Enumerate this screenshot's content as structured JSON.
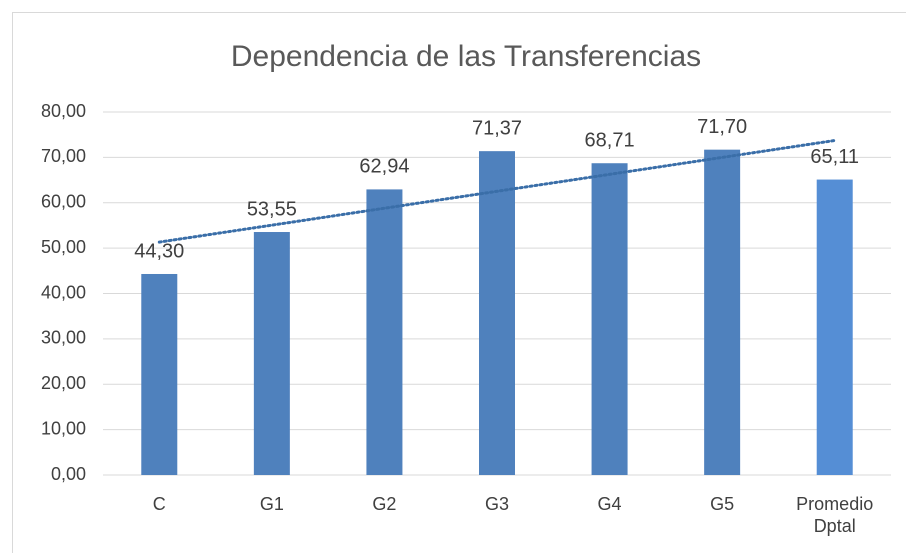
{
  "chart_data": {
    "type": "bar",
    "title": "Dependencia de las Transferencias",
    "categories": [
      "C",
      "G1",
      "G2",
      "G3",
      "G4",
      "G5",
      "Promedio Dptal"
    ],
    "values": [
      44.3,
      53.55,
      62.94,
      71.37,
      68.71,
      71.7,
      65.11
    ],
    "value_labels": [
      "44,30",
      "53,55",
      "62,94",
      "71,37",
      "68,71",
      "71,70",
      "65,11"
    ],
    "colors": [
      "#4f81bd",
      "#4f81bd",
      "#4f81bd",
      "#4f81bd",
      "#4f81bd",
      "#4f81bd",
      "#558ed5"
    ],
    "ylim": [
      0,
      80
    ],
    "yticks": [
      {
        "value": 0,
        "label": "0,00"
      },
      {
        "value": 10,
        "label": "10,00"
      },
      {
        "value": 20,
        "label": "20,00"
      },
      {
        "value": 30,
        "label": "30,00"
      },
      {
        "value": 40,
        "label": "40,00"
      },
      {
        "value": 50,
        "label": "50,00"
      },
      {
        "value": 60,
        "label": "60,00"
      },
      {
        "value": 70,
        "label": "70,00"
      },
      {
        "value": 80,
        "label": "80,00"
      }
    ],
    "grid": true,
    "trendline": "linear",
    "trendline_color": "#3a6ea8"
  }
}
